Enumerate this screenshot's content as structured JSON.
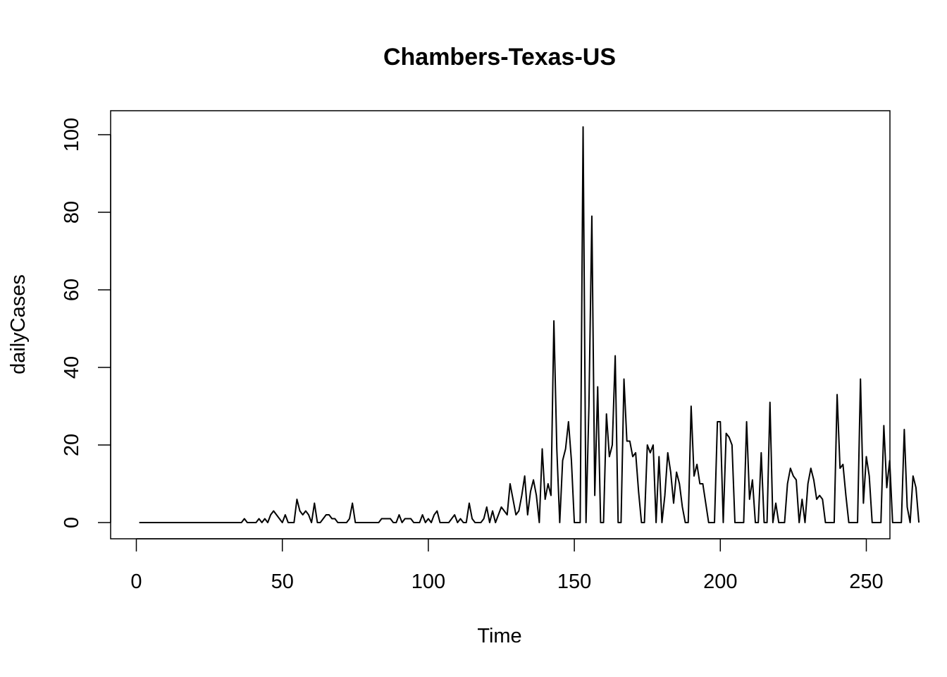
{
  "chart_data": {
    "type": "line",
    "title": "Chambers-Texas-US",
    "xlabel": "Time",
    "ylabel": "dailyCases",
    "xlim": [
      1,
      248
    ],
    "ylim": [
      0,
      102
    ],
    "x_ticks": [
      0,
      50,
      100,
      150,
      200,
      250
    ],
    "y_ticks": [
      0,
      20,
      40,
      60,
      80,
      100
    ],
    "grid": false,
    "legend": "none",
    "series": [
      {
        "x_start": 1,
        "values": [
          0,
          0,
          0,
          0,
          0,
          0,
          0,
          0,
          0,
          0,
          0,
          0,
          0,
          0,
          0,
          0,
          0,
          0,
          0,
          0,
          0,
          0,
          0,
          0,
          0,
          0,
          0,
          0,
          0,
          0,
          0,
          0,
          0,
          0,
          0,
          0,
          1,
          0,
          0,
          0,
          0,
          1,
          0,
          1,
          0,
          2,
          3,
          2,
          1,
          0,
          2,
          0,
          0,
          0,
          6,
          3,
          2,
          3,
          2,
          0,
          5,
          0,
          0,
          1,
          2,
          2,
          1,
          1,
          0,
          0,
          0,
          0,
          1,
          5,
          0,
          0,
          0,
          0,
          0,
          0,
          0,
          0,
          0,
          1,
          1,
          1,
          1,
          0,
          0,
          2,
          0,
          1,
          1,
          1,
          0,
          0,
          0,
          2,
          0,
          1,
          0,
          2,
          3,
          0,
          0,
          0,
          0,
          1,
          2,
          0,
          1,
          0,
          0,
          5,
          1,
          0,
          0,
          0,
          1,
          4,
          0,
          3,
          0,
          2,
          4,
          3,
          2,
          10,
          6,
          2,
          3,
          7,
          12,
          2,
          8,
          11,
          7,
          0,
          19,
          6,
          10,
          7,
          52,
          19,
          0,
          16,
          19,
          26,
          16,
          0,
          0,
          0,
          102,
          0,
          30,
          79,
          7,
          35,
          0,
          0,
          28,
          17,
          20,
          43,
          0,
          0,
          37,
          21,
          21,
          17,
          18,
          8,
          0,
          0,
          20,
          18,
          20,
          0,
          17,
          0,
          7,
          18,
          13,
          5,
          13,
          10,
          4,
          0,
          0,
          30,
          12,
          15,
          10,
          10,
          5,
          0,
          0,
          0,
          26,
          26,
          0,
          23,
          22,
          20,
          0,
          0,
          0,
          0,
          26,
          6,
          11,
          0,
          0,
          18,
          0,
          0,
          31,
          0,
          5,
          0,
          0,
          0,
          10,
          14,
          12,
          11,
          0,
          6,
          0,
          10,
          14,
          11,
          6,
          7,
          6,
          0,
          0,
          0,
          0,
          33,
          14,
          15,
          7,
          0,
          0,
          0,
          0,
          37,
          5,
          17,
          12,
          0,
          0,
          0,
          0,
          25,
          9,
          16,
          0,
          0,
          0,
          0,
          24,
          4,
          0,
          12,
          9,
          0
        ]
      }
    ]
  }
}
